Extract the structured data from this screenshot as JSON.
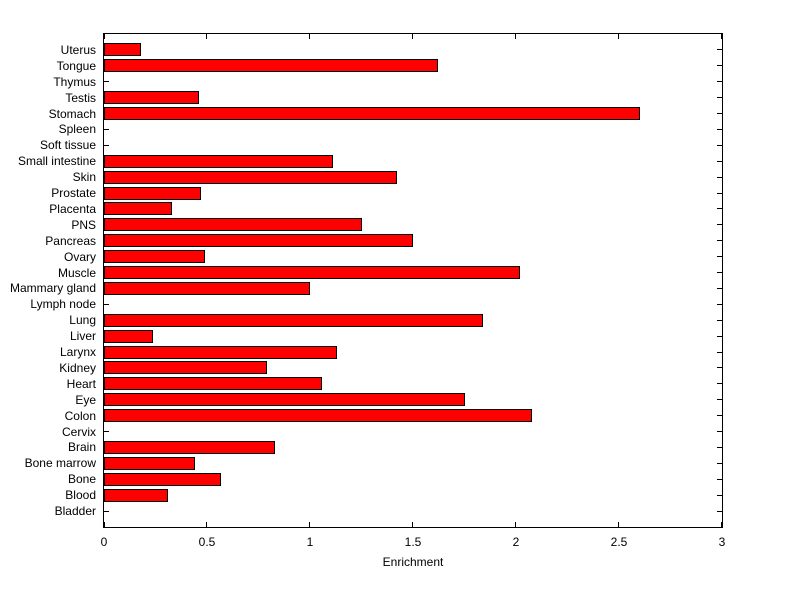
{
  "chart_data": {
    "type": "bar",
    "orientation": "horizontal",
    "title": "",
    "xlabel": "Enrichment",
    "ylabel": "",
    "xlim": [
      0,
      3
    ],
    "x_ticks": [
      0,
      0.5,
      1,
      1.5,
      2,
      2.5,
      3
    ],
    "x_tick_labels": [
      "0",
      "0.5",
      "1",
      "1.5",
      "2",
      "2.5",
      "3"
    ],
    "grid": false,
    "legend": "none",
    "bar_color": "#ff0000",
    "bar_edge_color": "#000000",
    "categories": [
      "Uterus",
      "Tongue",
      "Thymus",
      "Testis",
      "Stomach",
      "Spleen",
      "Soft tissue",
      "Small intestine",
      "Skin",
      "Prostate",
      "Placenta",
      "PNS",
      "Pancreas",
      "Ovary",
      "Muscle",
      "Mammary gland",
      "Lymph node",
      "Lung",
      "Liver",
      "Larynx",
      "Kidney",
      "Heart",
      "Eye",
      "Colon",
      "Cervix",
      "Brain",
      "Bone marrow",
      "Bone",
      "Blood",
      "Bladder"
    ],
    "values": [
      0.18,
      1.62,
      0,
      0.46,
      2.6,
      0,
      0,
      1.11,
      1.42,
      0.47,
      0.33,
      1.25,
      1.5,
      0.49,
      2.02,
      1.0,
      0,
      1.84,
      0.24,
      1.13,
      0.79,
      1.06,
      1.75,
      2.08,
      0,
      0.83,
      0.44,
      0.57,
      0.31,
      0
    ]
  }
}
